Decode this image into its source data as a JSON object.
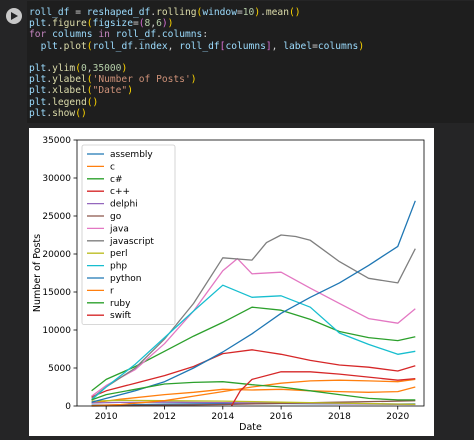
{
  "notebook": {
    "code_lines": [
      [
        {
          "t": "roll_df",
          "c": "var"
        },
        {
          "t": " = ",
          "c": ""
        },
        {
          "t": "reshaped_df",
          "c": "var"
        },
        {
          "t": ".",
          "c": ""
        },
        {
          "t": "rolling",
          "c": "fn"
        },
        {
          "t": "(",
          "c": "br"
        },
        {
          "t": "window",
          "c": "var"
        },
        {
          "t": "=",
          "c": ""
        },
        {
          "t": "10",
          "c": "num"
        },
        {
          "t": ")",
          "c": "br"
        },
        {
          "t": ".",
          "c": ""
        },
        {
          "t": "mean",
          "c": "fn"
        },
        {
          "t": "()",
          "c": "br"
        }
      ],
      [
        {
          "t": "plt",
          "c": "var"
        },
        {
          "t": ".",
          "c": ""
        },
        {
          "t": "figure",
          "c": "fn"
        },
        {
          "t": "(",
          "c": "br"
        },
        {
          "t": "figsize",
          "c": "var"
        },
        {
          "t": "=",
          "c": ""
        },
        {
          "t": "(",
          "c": "br2"
        },
        {
          "t": "8",
          "c": "num"
        },
        {
          "t": ",",
          "c": ""
        },
        {
          "t": "6",
          "c": "num"
        },
        {
          "t": ")",
          "c": "br2"
        },
        {
          "t": ")",
          "c": "br"
        }
      ],
      [
        {
          "t": "for",
          "c": "kw"
        },
        {
          "t": " ",
          "c": ""
        },
        {
          "t": "columns",
          "c": "var"
        },
        {
          "t": " ",
          "c": ""
        },
        {
          "t": "in",
          "c": "kw"
        },
        {
          "t": " ",
          "c": ""
        },
        {
          "t": "roll_df",
          "c": "var"
        },
        {
          "t": ".",
          "c": ""
        },
        {
          "t": "columns",
          "c": "var"
        },
        {
          "t": ":",
          "c": ""
        }
      ],
      [
        {
          "t": "  ",
          "c": ""
        },
        {
          "t": "plt",
          "c": "var"
        },
        {
          "t": ".",
          "c": ""
        },
        {
          "t": "plot",
          "c": "fn"
        },
        {
          "t": "(",
          "c": "br"
        },
        {
          "t": "roll_df",
          "c": "var"
        },
        {
          "t": ".",
          "c": ""
        },
        {
          "t": "index",
          "c": "var"
        },
        {
          "t": ", ",
          "c": ""
        },
        {
          "t": "roll_df",
          "c": "var"
        },
        {
          "t": "[",
          "c": "br2"
        },
        {
          "t": "columns",
          "c": "var"
        },
        {
          "t": "]",
          "c": "br2"
        },
        {
          "t": ", ",
          "c": ""
        },
        {
          "t": "label",
          "c": "var"
        },
        {
          "t": "=",
          "c": ""
        },
        {
          "t": "columns",
          "c": "var"
        },
        {
          "t": ")",
          "c": "br"
        }
      ],
      [],
      [
        {
          "t": "plt",
          "c": "var"
        },
        {
          "t": ".",
          "c": ""
        },
        {
          "t": "ylim",
          "c": "fn"
        },
        {
          "t": "(",
          "c": "br"
        },
        {
          "t": "0",
          "c": "num"
        },
        {
          "t": ",",
          "c": ""
        },
        {
          "t": "35000",
          "c": "num"
        },
        {
          "t": ")",
          "c": "br"
        }
      ],
      [
        {
          "t": "plt",
          "c": "var"
        },
        {
          "t": ".",
          "c": ""
        },
        {
          "t": "ylabel",
          "c": "fn"
        },
        {
          "t": "(",
          "c": "br"
        },
        {
          "t": "'Number of Posts'",
          "c": "str"
        },
        {
          "t": ")",
          "c": "br"
        }
      ],
      [
        {
          "t": "plt",
          "c": "var"
        },
        {
          "t": ".",
          "c": ""
        },
        {
          "t": "xlabel",
          "c": "fn"
        },
        {
          "t": "(",
          "c": "br"
        },
        {
          "t": "\"Date\"",
          "c": "str"
        },
        {
          "t": ")",
          "c": "br"
        }
      ],
      [
        {
          "t": "plt",
          "c": "var"
        },
        {
          "t": ".",
          "c": ""
        },
        {
          "t": "legend",
          "c": "fn"
        },
        {
          "t": "()",
          "c": "br"
        }
      ],
      [
        {
          "t": "plt",
          "c": "var"
        },
        {
          "t": ".",
          "c": ""
        },
        {
          "t": "show",
          "c": "fn"
        },
        {
          "t": "()",
          "c": "br"
        }
      ]
    ],
    "run_button_icon": "play-icon"
  },
  "chart_data": {
    "type": "line",
    "xlabel": "Date",
    "ylabel": "Number of Posts",
    "xlim": [
      2009.0,
      2020.9
    ],
    "ylim": [
      0,
      35000
    ],
    "xticks": [
      2010,
      2012,
      2014,
      2016,
      2018,
      2020
    ],
    "yticks": [
      0,
      5000,
      10000,
      15000,
      20000,
      25000,
      30000,
      35000
    ],
    "legend_position": "upper-left",
    "grid": false,
    "series": [
      {
        "name": "assembly",
        "color": "#1f77b4",
        "x": [
          2009.5,
          2010.5,
          2012,
          2014,
          2016,
          2018,
          2020,
          2020.6
        ],
        "y": [
          100,
          150,
          250,
          300,
          330,
          290,
          260,
          270
        ]
      },
      {
        "name": "c",
        "color": "#ff7f0e",
        "x": [
          2009.5,
          2010.5,
          2012,
          2013,
          2014,
          2015,
          2016,
          2017,
          2018,
          2019,
          2020,
          2020.6
        ],
        "y": [
          400,
          900,
          1500,
          1800,
          2200,
          2100,
          2200,
          2000,
          1900,
          1800,
          1900,
          2500
        ]
      },
      {
        "name": "c#",
        "color": "#2ca02c",
        "x": [
          2009.5,
          2010,
          2011,
          2012,
          2013,
          2014,
          2015,
          2016,
          2017,
          2018,
          2019,
          2020,
          2020.6
        ],
        "y": [
          2000,
          3500,
          5200,
          7200,
          9200,
          11000,
          13000,
          12600,
          11400,
          9800,
          9000,
          8600,
          9100
        ]
      },
      {
        "name": "c++",
        "color": "#d62728",
        "x": [
          2009.5,
          2010,
          2011,
          2012,
          2013,
          2014,
          2015,
          2016,
          2017,
          2018,
          2019,
          2020,
          2020.6
        ],
        "y": [
          1200,
          2000,
          3000,
          4000,
          5200,
          6900,
          7400,
          6800,
          6000,
          5400,
          5100,
          4600,
          5300
        ]
      },
      {
        "name": "delphi",
        "color": "#9467bd",
        "x": [
          2009.5,
          2010.5,
          2012,
          2014,
          2016,
          2018,
          2020,
          2020.6
        ],
        "y": [
          400,
          480,
          500,
          450,
          380,
          300,
          220,
          200
        ]
      },
      {
        "name": "go",
        "color": "#8c564b",
        "x": [
          2009.5,
          2010.5,
          2012,
          2014,
          2016,
          2018,
          2020,
          2020.6
        ],
        "y": [
          0,
          50,
          100,
          200,
          350,
          500,
          650,
          700
        ]
      },
      {
        "name": "java",
        "color": "#e377c2",
        "x": [
          2009.5,
          2010,
          2011,
          2012,
          2013,
          2014,
          2014.5,
          2015,
          2016,
          2017,
          2018,
          2019,
          2020,
          2020.6
        ],
        "y": [
          1300,
          2700,
          4800,
          8200,
          12500,
          17800,
          19400,
          17400,
          17600,
          15500,
          13500,
          11500,
          10900,
          12800
        ]
      },
      {
        "name": "javascript",
        "color": "#7f7f7f",
        "x": [
          2009.5,
          2010,
          2011,
          2012,
          2013,
          2014,
          2015,
          2015.5,
          2016,
          2016.5,
          2017,
          2018,
          2019,
          2020,
          2020.6
        ],
        "y": [
          1000,
          2500,
          5000,
          8800,
          13500,
          19500,
          19200,
          21500,
          22500,
          22300,
          21800,
          19000,
          16800,
          16200,
          20700
        ]
      },
      {
        "name": "perl",
        "color": "#bcbd22",
        "x": [
          2009.5,
          2010.5,
          2012,
          2014,
          2016,
          2018,
          2020,
          2020.6
        ],
        "y": [
          650,
          750,
          700,
          650,
          500,
          380,
          250,
          220
        ]
      },
      {
        "name": "php",
        "color": "#17becf",
        "x": [
          2009.5,
          2010,
          2011,
          2012,
          2013,
          2014,
          2015,
          2016,
          2017,
          2018,
          2019,
          2020,
          2020.6
        ],
        "y": [
          800,
          2500,
          5500,
          9000,
          12500,
          15900,
          14300,
          14500,
          13000,
          9600,
          8100,
          6800,
          7200
        ]
      },
      {
        "name": "python",
        "color": "#1f77b4",
        "x": [
          2009.5,
          2010,
          2011,
          2012,
          2013,
          2014,
          2015,
          2016,
          2017,
          2018,
          2019,
          2020,
          2020.6
        ],
        "y": [
          500,
          1000,
          2000,
          3200,
          5000,
          7100,
          9500,
          12200,
          14300,
          16200,
          18500,
          21000,
          27000
        ]
      },
      {
        "name": "r",
        "color": "#ff7f0e",
        "x": [
          2009.5,
          2010.5,
          2012,
          2013,
          2014,
          2015,
          2016,
          2017,
          2018,
          2019,
          2020,
          2020.6
        ],
        "y": [
          50,
          200,
          700,
          1300,
          1900,
          2500,
          3000,
          3300,
          3400,
          3300,
          3200,
          3500
        ]
      },
      {
        "name": "ruby",
        "color": "#2ca02c",
        "x": [
          2009.5,
          2010,
          2011,
          2012,
          2013,
          2014,
          2015,
          2016,
          2017,
          2018,
          2019,
          2020,
          2020.6
        ],
        "y": [
          800,
          1500,
          2200,
          2900,
          3100,
          3200,
          2800,
          2500,
          2000,
          1500,
          1000,
          800,
          800
        ]
      },
      {
        "name": "swift",
        "color": "#d62728",
        "x": [
          2014.3,
          2014.6,
          2015,
          2016,
          2017,
          2018,
          2019,
          2020,
          2020.6
        ],
        "y": [
          0,
          2000,
          3500,
          4500,
          4500,
          4200,
          3800,
          3400,
          3600
        ]
      }
    ]
  }
}
